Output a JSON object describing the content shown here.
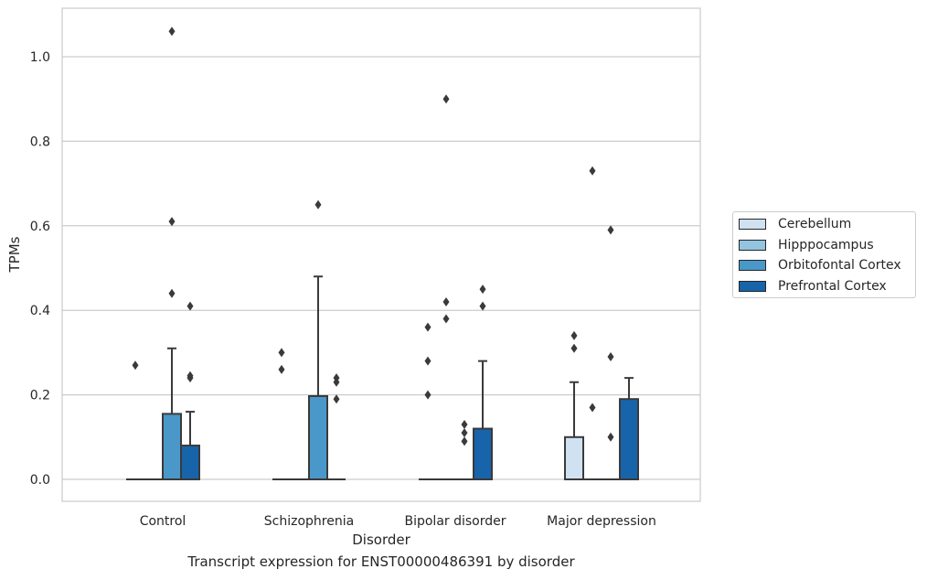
{
  "chart_data": {
    "type": "box",
    "xlabel": "Disorder",
    "ylabel": "TPMs",
    "caption": "Transcript expression for ENST00000486391 by disorder",
    "categories": [
      "Control",
      "Schizophrenia",
      "Bipolar disorder",
      "Major depression"
    ],
    "ylim": [
      -0.05,
      1.12
    ],
    "yticks": [
      0.0,
      0.2,
      0.4,
      0.6,
      0.8,
      1.0
    ],
    "ytick_labels": [
      "0.0",
      "0.2",
      "0.4",
      "0.6",
      "0.8",
      "1.0"
    ],
    "grid": "horizontal",
    "legend_position": "right, outside",
    "series": [
      {
        "name": "Cerebellum",
        "color": "#d0e1f2",
        "boxes": [
          {
            "q1": 0.0,
            "median": 0.0,
            "q3": 0.0,
            "whisker_low": 0.0,
            "whisker_high": 0.0,
            "outliers": [
              0.27
            ]
          },
          {
            "q1": 0.0,
            "median": 0.0,
            "q3": 0.0,
            "whisker_low": 0.0,
            "whisker_high": 0.0,
            "outliers": [
              0.3,
              0.26
            ]
          },
          {
            "q1": 0.0,
            "median": 0.0,
            "q3": 0.0,
            "whisker_low": 0.0,
            "whisker_high": 0.0,
            "outliers": [
              0.36,
              0.28,
              0.2
            ]
          },
          {
            "q1": 0.0,
            "median": 0.0,
            "q3": 0.1,
            "whisker_low": 0.0,
            "whisker_high": 0.23,
            "outliers": [
              0.34,
              0.31
            ]
          }
        ]
      },
      {
        "name": "Hipppocampus",
        "color": "#94c4df",
        "boxes": [
          {
            "q1": 0.0,
            "median": 0.0,
            "q3": 0.0,
            "whisker_low": 0.0,
            "whisker_high": 0.0,
            "outliers": []
          },
          {
            "q1": 0.0,
            "median": 0.0,
            "q3": 0.0,
            "whisker_low": 0.0,
            "whisker_high": 0.0,
            "outliers": []
          },
          {
            "q1": 0.0,
            "median": 0.0,
            "q3": 0.0,
            "whisker_low": 0.0,
            "whisker_high": 0.0,
            "outliers": [
              0.9,
              0.42,
              0.38
            ]
          },
          {
            "q1": 0.0,
            "median": 0.0,
            "q3": 0.0,
            "whisker_low": 0.0,
            "whisker_high": 0.0,
            "outliers": [
              0.73,
              0.17
            ]
          }
        ]
      },
      {
        "name": "Orbitofontal Cortex",
        "color": "#4a98c9",
        "boxes": [
          {
            "q1": 0.0,
            "median": 0.0,
            "q3": 0.155,
            "whisker_low": 0.0,
            "whisker_high": 0.31,
            "outliers": [
              1.06,
              0.61,
              0.44
            ]
          },
          {
            "q1": 0.0,
            "median": 0.0,
            "q3": 0.197,
            "whisker_low": 0.0,
            "whisker_high": 0.48,
            "outliers": [
              0.65
            ]
          },
          {
            "q1": 0.0,
            "median": 0.0,
            "q3": 0.0,
            "whisker_low": 0.0,
            "whisker_high": 0.0,
            "outliers": [
              0.13,
              0.11,
              0.09
            ]
          },
          {
            "q1": 0.0,
            "median": 0.0,
            "q3": 0.0,
            "whisker_low": 0.0,
            "whisker_high": 0.0,
            "outliers": [
              0.59,
              0.29,
              0.1
            ]
          }
        ]
      },
      {
        "name": "Prefrontal Cortex",
        "color": "#1764ab",
        "boxes": [
          {
            "q1": 0.0,
            "median": 0.0,
            "q3": 0.08,
            "whisker_low": 0.0,
            "whisker_high": 0.16,
            "outliers": [
              0.41,
              0.245,
              0.24
            ]
          },
          {
            "q1": 0.0,
            "median": 0.0,
            "q3": 0.0,
            "whisker_low": 0.0,
            "whisker_high": 0.0,
            "outliers": [
              0.24,
              0.23,
              0.19
            ]
          },
          {
            "q1": 0.0,
            "median": 0.0,
            "q3": 0.12,
            "whisker_low": 0.0,
            "whisker_high": 0.28,
            "outliers": [
              0.45,
              0.41
            ]
          },
          {
            "q1": 0.0,
            "median": 0.0,
            "q3": 0.19,
            "whisker_low": 0.0,
            "whisker_high": 0.24,
            "outliers": []
          }
        ]
      }
    ]
  }
}
